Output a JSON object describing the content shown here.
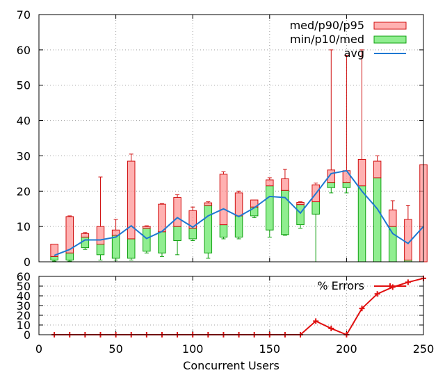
{
  "chart_data": [
    {
      "type": "box",
      "panel": "top",
      "ylim": [
        0,
        70
      ],
      "xlim": [
        0,
        250
      ],
      "yticks": [
        0,
        10,
        20,
        30,
        40,
        50,
        60,
        70
      ],
      "grid": true,
      "legend_position": "top-right",
      "series": [
        {
          "name": "med/p90/p95",
          "color": "#ff9090"
        },
        {
          "name": "min/p10/med",
          "color": "#90ee90"
        },
        {
          "name": "avg",
          "color": "#1e78d2"
        }
      ],
      "boxes": [
        {
          "x": 10,
          "min": 0.2,
          "p10": 0.5,
          "med": 1.5,
          "p90": 5,
          "p95": 5
        },
        {
          "x": 20,
          "min": 0.2,
          "p10": 0.5,
          "med": 2.5,
          "p90": 12.8,
          "p95": 13
        },
        {
          "x": 30,
          "min": 3.5,
          "p10": 4,
          "med": 7,
          "p90": 8,
          "p95": 8.3
        },
        {
          "x": 40,
          "min": 0.5,
          "p10": 2,
          "med": 5,
          "p90": 10,
          "p95": 24
        },
        {
          "x": 50,
          "min": 0.5,
          "p10": 1,
          "med": 7.5,
          "p90": 9,
          "p95": 12
        },
        {
          "x": 60,
          "min": 0.5,
          "p10": 1,
          "med": 6.5,
          "p90": 28.5,
          "p95": 30.5
        },
        {
          "x": 70,
          "min": 2.5,
          "p10": 3,
          "med": 9.5,
          "p90": 10,
          "p95": 10.2
        },
        {
          "x": 80,
          "min": 1.5,
          "p10": 2.5,
          "med": 8.5,
          "p90": 16.3,
          "p95": 16.5
        },
        {
          "x": 90,
          "min": 2,
          "p10": 6,
          "med": 10,
          "p90": 18.2,
          "p95": 19
        },
        {
          "x": 100,
          "min": 6,
          "p10": 6.5,
          "med": 9.5,
          "p90": 14.5,
          "p95": 15.5
        },
        {
          "x": 110,
          "min": 1,
          "p10": 2.5,
          "med": 16,
          "p90": 16.7,
          "p95": 17
        },
        {
          "x": 120,
          "min": 6.5,
          "p10": 7,
          "med": 10.5,
          "p90": 24.8,
          "p95": 25.5
        },
        {
          "x": 130,
          "min": 6.5,
          "p10": 7,
          "med": 13,
          "p90": 19.5,
          "p95": 20
        },
        {
          "x": 140,
          "min": 12.5,
          "p10": 13,
          "med": 15.5,
          "p90": 17.5,
          "p95": 17.5
        },
        {
          "x": 150,
          "min": 7,
          "p10": 9,
          "med": 21.5,
          "p90": 23.2,
          "p95": 23.8
        },
        {
          "x": 160,
          "min": 7.5,
          "p10": 7.7,
          "med": 20.2,
          "p90": 23.5,
          "p95": 26.2
        },
        {
          "x": 170,
          "min": 9.5,
          "p10": 10.5,
          "med": 16.2,
          "p90": 16.8,
          "p95": 17
        },
        {
          "x": 180,
          "min": 0,
          "p10": 13.5,
          "med": 17,
          "p90": 21.8,
          "p95": 22.3
        },
        {
          "x": 190,
          "min": 19.5,
          "p10": 21,
          "med": 22.5,
          "p90": 26,
          "p95": 60
        },
        {
          "x": 200,
          "min": 19.5,
          "p10": 21,
          "med": 22.5,
          "p90": 25.8,
          "p95": 58.5
        },
        {
          "x": 210,
          "min": 0,
          "p10": 0,
          "med": 21.5,
          "p90": 29,
          "p95": 60
        },
        {
          "x": 220,
          "min": 0,
          "p10": 0,
          "med": 23.8,
          "p90": 28.5,
          "p95": 30
        },
        {
          "x": 230,
          "min": 0,
          "p10": 0,
          "med": 10,
          "p90": 14.7,
          "p95": 17.3
        },
        {
          "x": 240,
          "min": 0,
          "p10": 0,
          "med": 0.5,
          "p90": 12,
          "p95": 16
        },
        {
          "x": 250,
          "min": 0,
          "p10": 0,
          "med": 0,
          "p90": 27.5,
          "p95": 27.5
        }
      ],
      "avg": {
        "x": [
          10,
          20,
          30,
          40,
          50,
          60,
          70,
          80,
          90,
          100,
          110,
          120,
          130,
          140,
          150,
          160,
          170,
          180,
          190,
          200,
          210,
          220,
          230,
          240,
          250
        ],
        "y": [
          1.8,
          3.5,
          6.2,
          6.2,
          7,
          10.2,
          6.6,
          8.6,
          12.5,
          9.8,
          13,
          15,
          12.8,
          15.3,
          18.5,
          18.2,
          13.8,
          19.3,
          25,
          25.8,
          20,
          15,
          8,
          5.2,
          10
        ]
      }
    },
    {
      "type": "line",
      "panel": "bottom",
      "ylim": [
        0,
        60
      ],
      "xlim": [
        0,
        250
      ],
      "yticks": [
        0,
        10,
        20,
        30,
        40,
        50,
        60
      ],
      "xticks": [
        0,
        50,
        100,
        150,
        200,
        250
      ],
      "xlabel": "Concurrent Users",
      "grid": true,
      "legend_position": "top-right",
      "series": [
        {
          "name": "% Errors",
          "color": "#e01010",
          "x": [
            10,
            20,
            30,
            40,
            50,
            60,
            70,
            80,
            90,
            100,
            110,
            120,
            130,
            140,
            150,
            160,
            170,
            180,
            190,
            200,
            210,
            220,
            230,
            240,
            250
          ],
          "y": [
            0,
            0,
            0,
            0,
            0,
            0,
            0,
            0,
            0,
            0,
            0,
            0,
            0,
            0,
            0,
            0,
            0,
            14,
            6.5,
            0,
            27,
            42,
            49,
            54,
            58
          ]
        }
      ]
    }
  ]
}
